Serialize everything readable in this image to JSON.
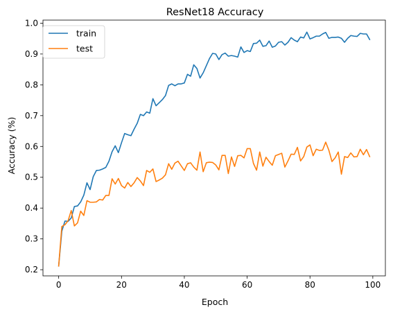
{
  "chart_data": {
    "type": "line",
    "title": "ResNet18 Accuracy",
    "xlabel": "Epoch",
    "ylabel": "Accuracy (%)",
    "xlim": [
      -5,
      104
    ],
    "ylim": [
      0.18,
      1.01
    ],
    "xticks": [
      0,
      20,
      40,
      60,
      80,
      100
    ],
    "yticks": [
      0.2,
      0.3,
      0.4,
      0.5,
      0.6,
      0.7,
      0.8,
      0.9,
      1.0
    ],
    "grid": false,
    "legend_position": "top-left",
    "series": [
      {
        "name": "train",
        "color": "#1f77b4",
        "values": [
          0.212,
          0.325,
          0.358,
          0.357,
          0.368,
          0.405,
          0.407,
          0.42,
          0.442,
          0.482,
          0.46,
          0.502,
          0.522,
          0.523,
          0.527,
          0.532,
          0.552,
          0.583,
          0.602,
          0.58,
          0.612,
          0.642,
          0.638,
          0.635,
          0.656,
          0.675,
          0.704,
          0.7,
          0.712,
          0.708,
          0.755,
          0.732,
          0.742,
          0.752,
          0.765,
          0.798,
          0.803,
          0.797,
          0.803,
          0.803,
          0.806,
          0.834,
          0.828,
          0.865,
          0.853,
          0.822,
          0.839,
          0.862,
          0.885,
          0.902,
          0.9,
          0.882,
          0.898,
          0.903,
          0.893,
          0.895,
          0.893,
          0.89,
          0.923,
          0.905,
          0.911,
          0.908,
          0.934,
          0.935,
          0.945,
          0.925,
          0.927,
          0.942,
          0.922,
          0.926,
          0.938,
          0.94,
          0.929,
          0.938,
          0.953,
          0.945,
          0.94,
          0.955,
          0.952,
          0.971,
          0.949,
          0.953,
          0.958,
          0.958,
          0.965,
          0.97,
          0.951,
          0.954,
          0.954,
          0.955,
          0.951,
          0.938,
          0.951,
          0.96,
          0.958,
          0.957,
          0.967,
          0.965,
          0.965,
          0.947
        ]
      },
      {
        "name": "test",
        "color": "#ff7f0e",
        "values": [
          0.212,
          0.34,
          0.346,
          0.359,
          0.392,
          0.342,
          0.352,
          0.39,
          0.376,
          0.424,
          0.419,
          0.419,
          0.42,
          0.428,
          0.426,
          0.441,
          0.441,
          0.495,
          0.478,
          0.496,
          0.473,
          0.465,
          0.483,
          0.47,
          0.482,
          0.499,
          0.488,
          0.473,
          0.522,
          0.516,
          0.527,
          0.486,
          0.491,
          0.497,
          0.508,
          0.544,
          0.526,
          0.546,
          0.552,
          0.537,
          0.522,
          0.544,
          0.547,
          0.533,
          0.523,
          0.582,
          0.518,
          0.547,
          0.549,
          0.548,
          0.54,
          0.524,
          0.571,
          0.571,
          0.512,
          0.566,
          0.535,
          0.57,
          0.571,
          0.563,
          0.593,
          0.593,
          0.545,
          0.523,
          0.582,
          0.536,
          0.565,
          0.551,
          0.539,
          0.57,
          0.574,
          0.578,
          0.533,
          0.553,
          0.575,
          0.574,
          0.597,
          0.553,
          0.567,
          0.598,
          0.605,
          0.57,
          0.591,
          0.587,
          0.588,
          0.614,
          0.588,
          0.551,
          0.563,
          0.582,
          0.51,
          0.567,
          0.564,
          0.579,
          0.566,
          0.567,
          0.591,
          0.573,
          0.59,
          0.567
        ]
      }
    ]
  }
}
